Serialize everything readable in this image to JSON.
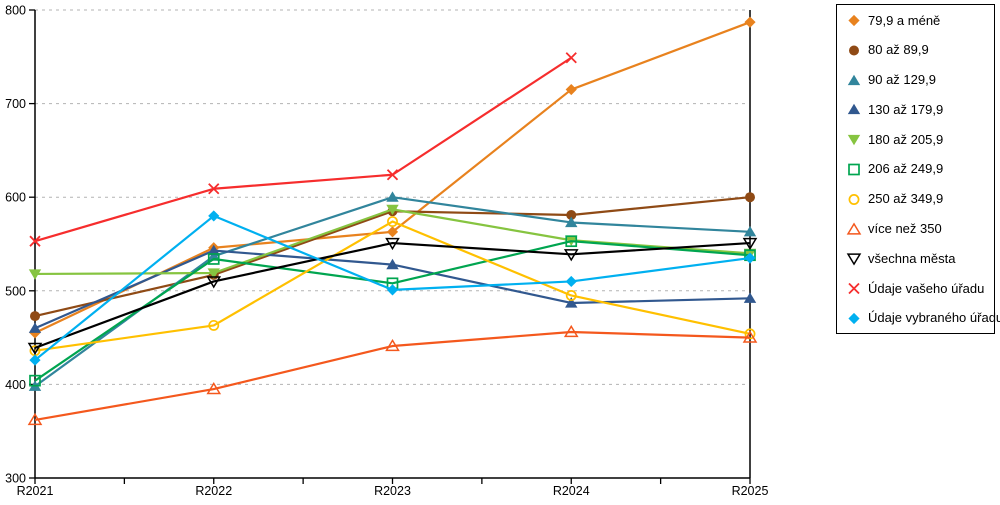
{
  "chart_data": {
    "type": "line",
    "title": "",
    "xlabel": "",
    "ylabel": "",
    "x_categories": [
      "R2021",
      "R2022",
      "R2023",
      "R2024",
      "R2025"
    ],
    "ylim": [
      300,
      800
    ],
    "y_ticks": [
      300,
      400,
      500,
      600,
      700,
      800
    ],
    "y_gridlines": [
      400,
      500,
      600,
      700,
      800
    ],
    "grid": "horizontal-dashed",
    "legend_position": "right",
    "axis_color": "#000000",
    "gridline_color": "#b3b3b3",
    "series": [
      {
        "name": "79,9 a méně",
        "marker": "diamond-filled",
        "color": "#E8821E",
        "values": [
          455,
          546,
          563,
          715,
          787
        ]
      },
      {
        "name": "80 až 89,9",
        "marker": "circle-filled",
        "color": "#8F4A15",
        "values": [
          473,
          517,
          585,
          581,
          600
        ]
      },
      {
        "name": "90 až 129,9",
        "marker": "triangle-up-filled",
        "color": "#31859C",
        "values": [
          398,
          537,
          600,
          573,
          563
        ]
      },
      {
        "name": "130 až 179,9",
        "marker": "triangle-up-filled",
        "color": "#31588F",
        "values": [
          460,
          543,
          528,
          487,
          492
        ]
      },
      {
        "name": "180 až 205,9",
        "marker": "triangle-down-filled",
        "color": "#86C440",
        "values": [
          518,
          519,
          587,
          554,
          540
        ]
      },
      {
        "name": "206 až 249,9",
        "marker": "square-open",
        "color": "#00A550",
        "values": [
          404,
          534,
          508,
          553,
          538
        ]
      },
      {
        "name": "250 až 349,9",
        "marker": "circle-open",
        "color": "#FFC000",
        "values": [
          436,
          463,
          574,
          495,
          454
        ]
      },
      {
        "name": "více než 350",
        "marker": "triangle-up-open",
        "color": "#F4581D",
        "values": [
          362,
          395,
          441,
          456,
          450
        ]
      },
      {
        "name": "všechna města",
        "marker": "triangle-down-open",
        "color": "#000000",
        "values": [
          439,
          510,
          551,
          539,
          551
        ]
      },
      {
        "name": "Údaje vašeho úřadu",
        "marker": "x",
        "color": "#F62D2D",
        "values": [
          553,
          609,
          624,
          749,
          null
        ]
      },
      {
        "name": "Údaje vybraného úřadu",
        "marker": "diamond-filled",
        "color": "#00B0F0",
        "values": [
          426,
          580,
          501,
          510,
          535
        ]
      }
    ]
  }
}
